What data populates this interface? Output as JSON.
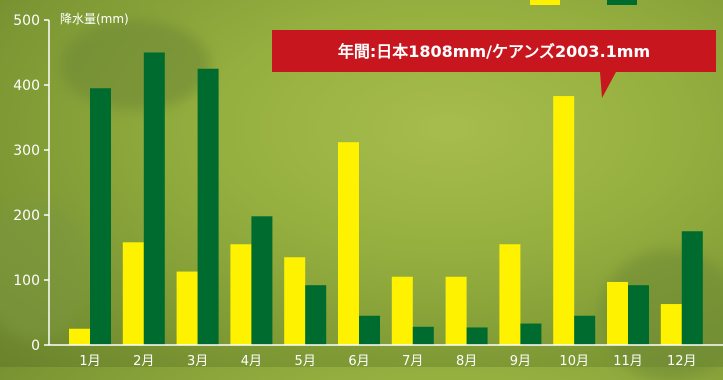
{
  "colors": {
    "series1": "#fff200",
    "series2": "#006b2e",
    "axis": "#ffffff",
    "annotation_bg": "#c8161e"
  },
  "chart_data": {
    "type": "bar",
    "ylabel": "降水量(mm)",
    "ylim": [
      0,
      500
    ],
    "yticks": [
      0,
      100,
      200,
      300,
      400,
      500
    ],
    "categories": [
      "1月",
      "2月",
      "3月",
      "4月",
      "5月",
      "6月",
      "7月",
      "8月",
      "9月",
      "10月",
      "11月",
      "12月"
    ],
    "series": [
      {
        "color": "#fff200",
        "values": [
          25,
          158,
          113,
          155,
          135,
          312,
          105,
          105,
          155,
          383,
          97,
          63
        ]
      },
      {
        "color": "#006b2e",
        "values": [
          395,
          450,
          425,
          198,
          92,
          45,
          28,
          27,
          33,
          45,
          92,
          175
        ]
      }
    ],
    "annotation": "年間:日本1808mm/ケアンズ2003.1mm",
    "grid": false,
    "legend": "top-right"
  }
}
